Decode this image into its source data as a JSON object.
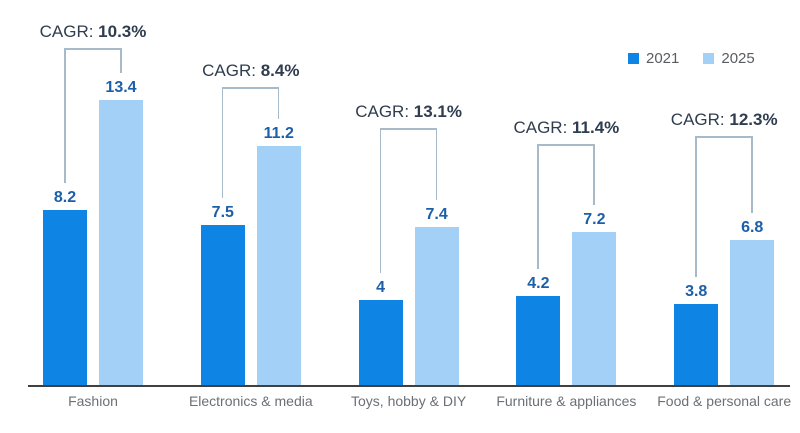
{
  "chart_data": {
    "type": "bar",
    "title": "",
    "categories": [
      "Fashion",
      "Electronics & media",
      "Toys, hobby & DIY",
      "Furniture & appliances",
      "Food & personal care"
    ],
    "series": [
      {
        "name": "2021",
        "color": "#0e84e4",
        "values": [
          8.2,
          7.5,
          4,
          4.2,
          3.8
        ]
      },
      {
        "name": "2025",
        "color": "#a2d0f6",
        "values": [
          13.4,
          11.2,
          7.4,
          7.2,
          6.8
        ]
      }
    ],
    "annotations": {
      "cagr_prefix": "CAGR:",
      "cagr_values": [
        "10.3%",
        "8.4%",
        "13.1%",
        "11.4%",
        "12.3%"
      ]
    },
    "value_labels_shown": true,
    "ylim": [
      0,
      14
    ],
    "grid": false,
    "legend_position": "top-right"
  },
  "colors": {
    "value_label": "#1c5fa9",
    "cagr_text": "#2f3d4f",
    "category_label": "#6b7076",
    "legend_text": "#595d62",
    "axis_line": "#404040",
    "bracket_line": "#a7bac9",
    "background": "#ffffff"
  }
}
